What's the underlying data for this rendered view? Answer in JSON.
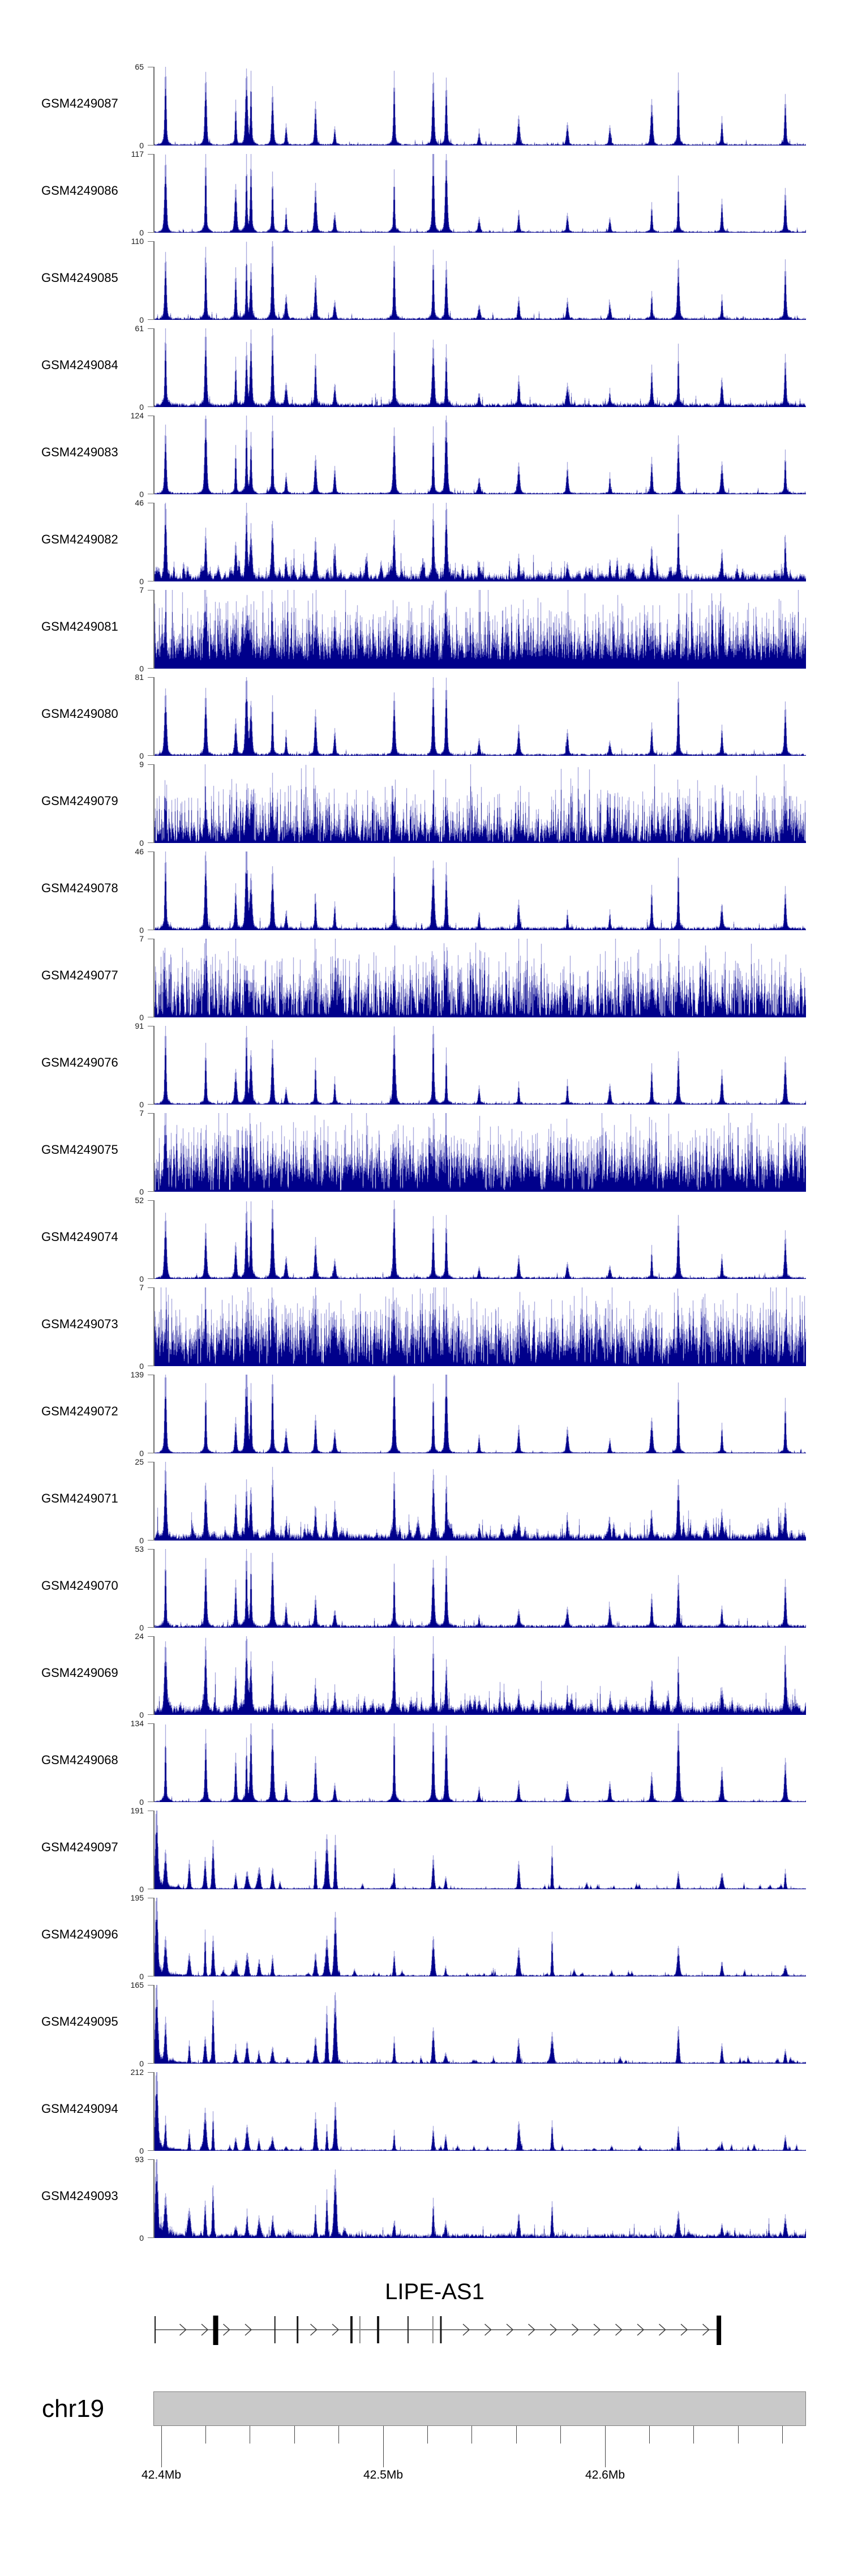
{
  "figure": {
    "background": "#ffffff",
    "signal_color": "#00008B",
    "axis_color": "#6e6e6e"
  },
  "labels": {
    "zero": "0"
  },
  "gene_track": {
    "title": "LIPE-AS1"
  },
  "axis": {
    "chromosome": "chr19",
    "major_ticks": [
      {
        "mb": 42.4,
        "label": "42.4Mb"
      },
      {
        "mb": 42.5,
        "label": "42.5Mb"
      },
      {
        "mb": 42.6,
        "label": "42.6Mb"
      }
    ],
    "minor_ticks_mb": [
      42.4,
      42.42,
      42.44,
      42.46,
      42.48,
      42.5,
      42.52,
      42.54,
      42.56,
      42.58,
      42.6,
      42.62,
      42.64,
      42.66,
      42.68
    ]
  },
  "chart_data": {
    "type": "area",
    "title": "LIPE-AS1",
    "region": {
      "chromosome": "chr19",
      "xlim_mb": [
        42.3967,
        42.6906
      ],
      "major_tick_labels": [
        "42.4Mb",
        "42.5Mb",
        "42.6Mb"
      ]
    },
    "ylabel": "",
    "tracks": [
      {
        "sample": "GSM4249087",
        "ymax": 65,
        "ymin": 0,
        "profile": "peaks",
        "noise": 0.022,
        "peak_scale": 1.0,
        "gap": 0
      },
      {
        "sample": "GSM4249086",
        "ymax": 117,
        "ymin": 0,
        "profile": "peaks",
        "noise": 0.02,
        "peak_scale": 1.0,
        "gap": 0
      },
      {
        "sample": "GSM4249085",
        "ymax": 110,
        "ymin": 0,
        "profile": "peaks",
        "noise": 0.03,
        "peak_scale": 1.0,
        "gap": 0
      },
      {
        "sample": "GSM4249084",
        "ymax": 61,
        "ymin": 0,
        "profile": "peaks",
        "noise": 0.055,
        "peak_scale": 0.95,
        "gap": 0
      },
      {
        "sample": "GSM4249083",
        "ymax": 124,
        "ymin": 0,
        "profile": "peaks",
        "noise": 0.025,
        "peak_scale": 1.0,
        "gap": 0
      },
      {
        "sample": "GSM4249082",
        "ymax": 46,
        "ymin": 0,
        "profile": "noisy",
        "noise": 0.1,
        "peak_scale": 0.85,
        "gap": 0
      },
      {
        "sample": "GSM4249081",
        "ymax": 7,
        "ymin": 0,
        "profile": "dense",
        "noise": 0.3,
        "peak_scale": 0.45,
        "gap": 0.0
      },
      {
        "sample": "GSM4249080",
        "ymax": 81,
        "ymin": 0,
        "profile": "peaks",
        "noise": 0.03,
        "peak_scale": 0.95,
        "gap": 0
      },
      {
        "sample": "GSM4249079",
        "ymax": 9,
        "ymin": 0,
        "profile": "dense",
        "noise": 0.2,
        "peak_scale": 0.5,
        "gap": 0.15
      },
      {
        "sample": "GSM4249078",
        "ymax": 46,
        "ymin": 0,
        "profile": "peaks",
        "noise": 0.045,
        "peak_scale": 0.95,
        "gap": 0
      },
      {
        "sample": "GSM4249077",
        "ymax": 7,
        "ymin": 0,
        "profile": "dense",
        "noise": 0.3,
        "peak_scale": 0.45,
        "gap": 0.25
      },
      {
        "sample": "GSM4249076",
        "ymax": 91,
        "ymin": 0,
        "profile": "peaks",
        "noise": 0.025,
        "peak_scale": 0.95,
        "gap": 0
      },
      {
        "sample": "GSM4249075",
        "ymax": 7,
        "ymin": 0,
        "profile": "dense",
        "noise": 0.32,
        "peak_scale": 0.45,
        "gap": 0.08
      },
      {
        "sample": "GSM4249074",
        "ymax": 52,
        "ymin": 0,
        "profile": "peaks",
        "noise": 0.03,
        "peak_scale": 0.9,
        "gap": 0
      },
      {
        "sample": "GSM4249073",
        "ymax": 7,
        "ymin": 0,
        "profile": "dense",
        "noise": 0.34,
        "peak_scale": 0.45,
        "gap": 0.1
      },
      {
        "sample": "GSM4249072",
        "ymax": 139,
        "ymin": 0,
        "profile": "peaks",
        "noise": 0.018,
        "peak_scale": 1.0,
        "gap": 0
      },
      {
        "sample": "GSM4249071",
        "ymax": 25,
        "ymin": 0,
        "profile": "noisy",
        "noise": 0.09,
        "peak_scale": 0.8,
        "gap": 0
      },
      {
        "sample": "GSM4249070",
        "ymax": 53,
        "ymin": 0,
        "profile": "peaks",
        "noise": 0.04,
        "peak_scale": 0.9,
        "gap": 0
      },
      {
        "sample": "GSM4249069",
        "ymax": 24,
        "ymin": 0,
        "profile": "noisy",
        "noise": 0.12,
        "peak_scale": 0.8,
        "gap": 0
      },
      {
        "sample": "GSM4249068",
        "ymax": 134,
        "ymin": 0,
        "profile": "peaks",
        "noise": 0.02,
        "peak_scale": 1.0,
        "gap": 0
      },
      {
        "sample": "GSM4249097",
        "ymax": 191,
        "ymin": 0,
        "profile": "promoter",
        "noise": 0.02,
        "peak_scale": 1.0,
        "gap": 0
      },
      {
        "sample": "GSM4249096",
        "ymax": 195,
        "ymin": 0,
        "profile": "promoter",
        "noise": 0.025,
        "peak_scale": 0.95,
        "gap": 0
      },
      {
        "sample": "GSM4249095",
        "ymax": 165,
        "ymin": 0,
        "profile": "promoter",
        "noise": 0.025,
        "peak_scale": 1.05,
        "gap": 0
      },
      {
        "sample": "GSM4249094",
        "ymax": 212,
        "ymin": 0,
        "profile": "promoter",
        "noise": 0.02,
        "peak_scale": 0.9,
        "gap": 0
      },
      {
        "sample": "GSM4249093",
        "ymax": 93,
        "ymin": 0,
        "profile": "promoter",
        "noise": 0.06,
        "peak_scale": 0.95,
        "gap": 0
      }
    ],
    "common_peaks": [
      [
        42.4017,
        1.0
      ],
      [
        42.42,
        0.9
      ],
      [
        42.4335,
        0.55
      ],
      [
        42.4382,
        0.98
      ],
      [
        42.4402,
        0.82
      ],
      [
        42.45,
        0.88
      ],
      [
        42.456,
        0.25
      ],
      [
        42.4695,
        0.52
      ],
      [
        42.478,
        0.28
      ],
      [
        42.5048,
        0.93
      ],
      [
        42.5225,
        0.99
      ],
      [
        42.5282,
        0.92
      ],
      [
        42.543,
        0.18
      ],
      [
        42.561,
        0.3
      ],
      [
        42.583,
        0.28
      ],
      [
        42.602,
        0.22
      ],
      [
        42.621,
        0.45
      ],
      [
        42.633,
        0.8
      ],
      [
        42.6525,
        0.35
      ],
      [
        42.681,
        0.6
      ]
    ],
    "promoter_peaks": [
      [
        42.4017,
        0.4
      ],
      [
        42.4125,
        0.28
      ],
      [
        42.4197,
        0.5
      ],
      [
        42.4232,
        0.62
      ],
      [
        42.4335,
        0.18
      ],
      [
        42.4385,
        0.3
      ],
      [
        42.444,
        0.2
      ],
      [
        42.45,
        0.22
      ],
      [
        42.4695,
        0.4
      ],
      [
        42.4745,
        0.6
      ],
      [
        42.4782,
        0.72
      ],
      [
        42.5048,
        0.3
      ],
      [
        42.5225,
        0.42
      ],
      [
        42.528,
        0.18
      ],
      [
        42.561,
        0.32
      ],
      [
        42.576,
        0.48
      ],
      [
        42.633,
        0.35
      ],
      [
        42.6525,
        0.18
      ],
      [
        42.681,
        0.22
      ]
    ],
    "promoter_spike_mb": 42.3978,
    "gene": {
      "name": "LIPE-AS1",
      "strand": "+",
      "start_mb": 42.3972,
      "end_mb": 42.6513,
      "exons": [
        {
          "mb": 42.3972,
          "w": 2,
          "gray": false
        },
        {
          "mb": 42.4245,
          "w": 9,
          "gray": false
        },
        {
          "mb": 42.4512,
          "w": 2,
          "gray": false
        },
        {
          "mb": 42.4614,
          "w": 3,
          "gray": false
        },
        {
          "mb": 42.4857,
          "w": 4,
          "gray": false
        },
        {
          "mb": 42.4895,
          "w": 2,
          "gray": true
        },
        {
          "mb": 42.4977,
          "w": 4,
          "gray": false
        },
        {
          "mb": 42.5112,
          "w": 2,
          "gray": false
        },
        {
          "mb": 42.5224,
          "w": 2,
          "gray": true
        },
        {
          "mb": 42.526,
          "w": 3,
          "gray": false
        },
        {
          "mb": 42.6513,
          "w": 8,
          "gray": false
        }
      ]
    }
  }
}
